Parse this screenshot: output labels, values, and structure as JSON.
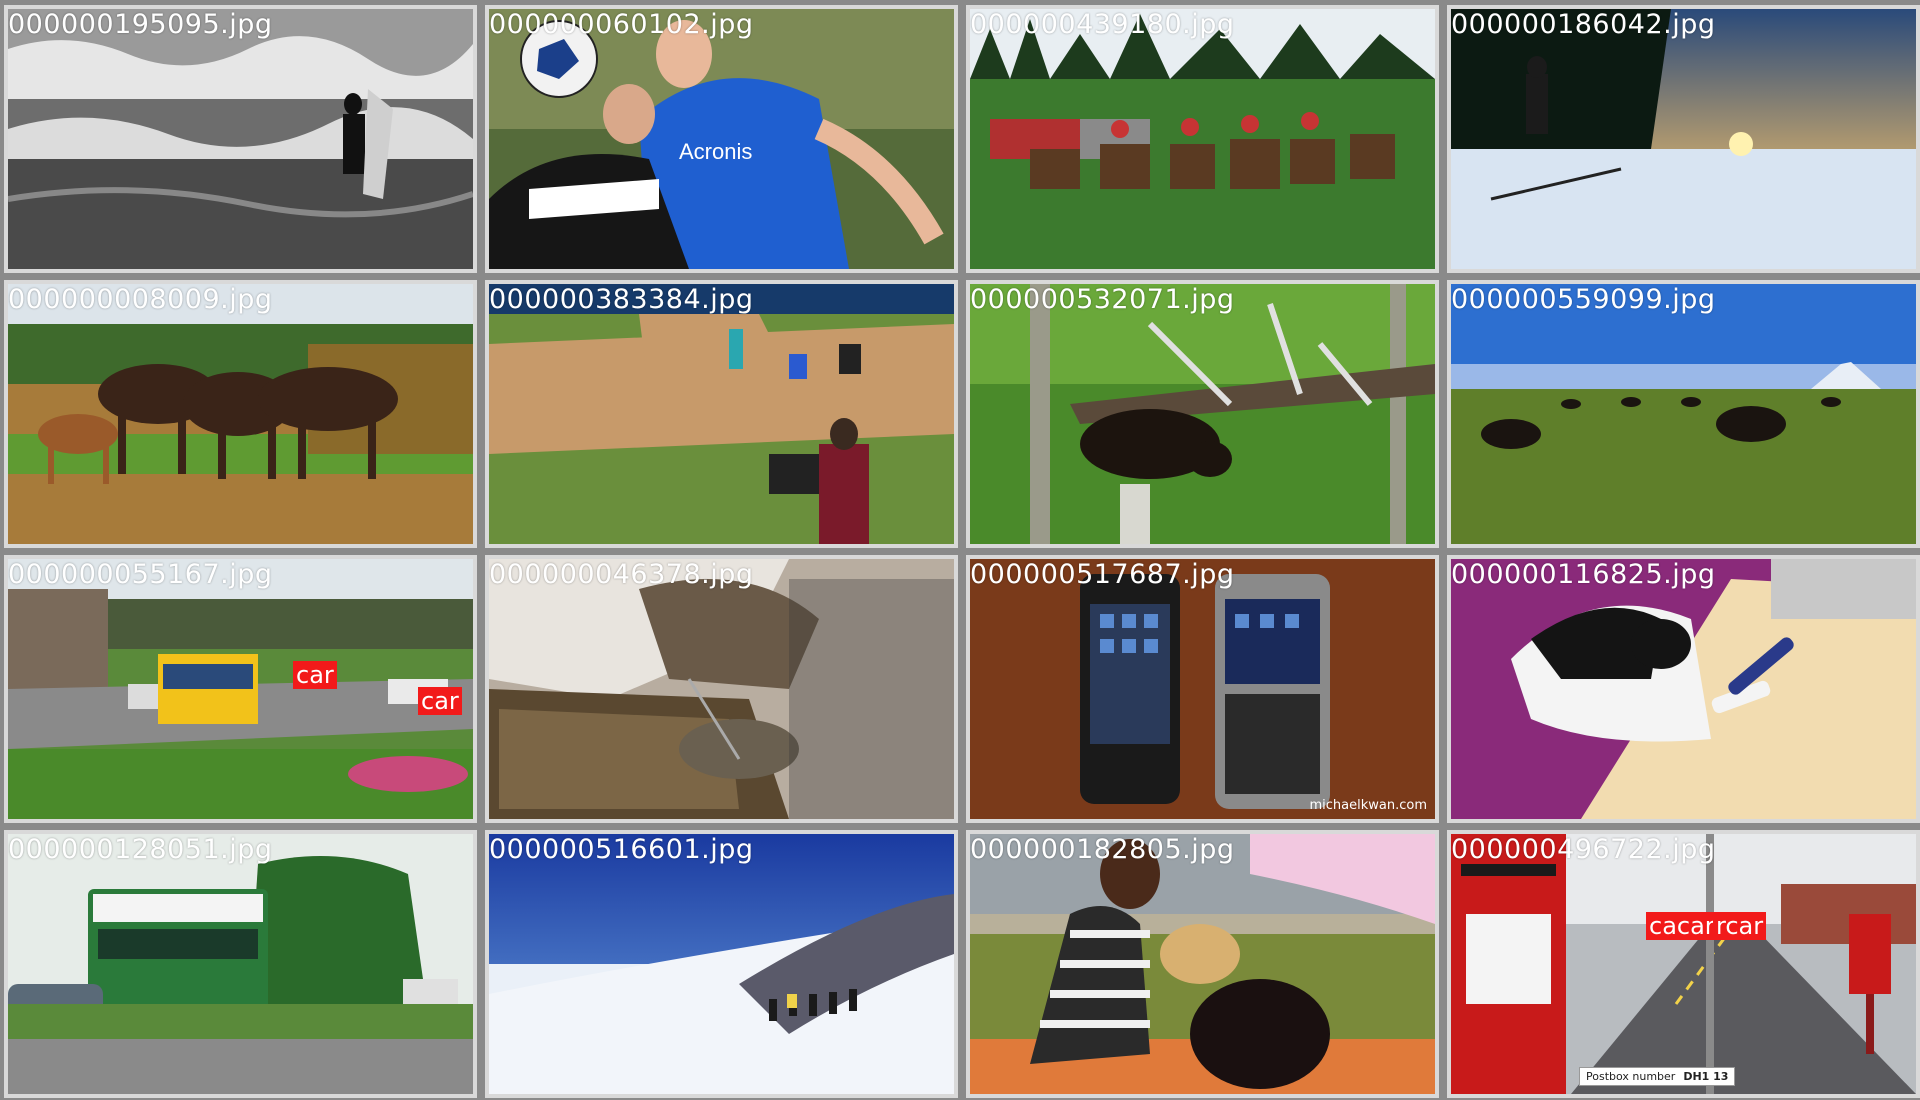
{
  "tiles": [
    {
      "filename": "000000195095.jpg"
    },
    {
      "filename": "000000060102.jpg",
      "shirt_text": "Acronis"
    },
    {
      "filename": "000000439180.jpg"
    },
    {
      "filename": "000000186042.jpg"
    },
    {
      "filename": "000000008009.jpg"
    },
    {
      "filename": "000000383384.jpg"
    },
    {
      "filename": "000000532071.jpg"
    },
    {
      "filename": "000000559099.jpg"
    },
    {
      "filename": "000000055167.jpg",
      "tags": [
        "car",
        "car"
      ]
    },
    {
      "filename": "000000046378.jpg"
    },
    {
      "filename": "000000517687.jpg",
      "credit": "michaelkwan.com"
    },
    {
      "filename": "000000116825.jpg"
    },
    {
      "filename": "000000128051.jpg"
    },
    {
      "filename": "000000516601.jpg"
    },
    {
      "filename": "000000182805.jpg"
    },
    {
      "filename": "000000496722.jpg",
      "tags": [
        "cacar",
        "rcar"
      ],
      "postbox_label": "Postbox number",
      "postbox_number": "DH1 13"
    }
  ],
  "colors": {
    "background": "#8a8a8a",
    "tile_border": "#d9d9d9",
    "tag_red": "#f21a1a",
    "label_text": "#ffffff"
  }
}
